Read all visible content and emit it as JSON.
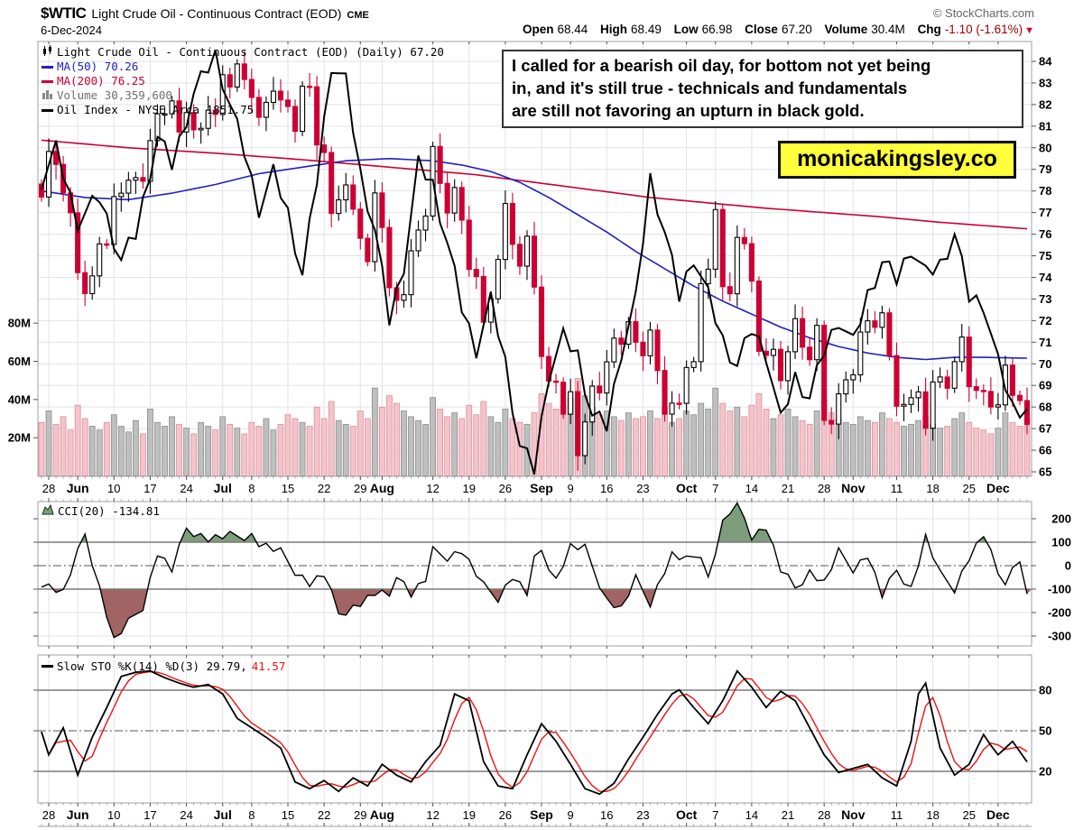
{
  "header": {
    "symbol": "$WTIC",
    "title": "Light Crude Oil - Continuous Contract (EOD)",
    "exchange": "CME",
    "copyright": "© StockCharts.com",
    "date": "6-Dec-2024",
    "quote": {
      "open_label": "Open",
      "open": "68.44",
      "high_label": "High",
      "high": "68.49",
      "low_label": "Low",
      "low": "66.98",
      "close_label": "Close",
      "close": "67.20",
      "volume_label": "Volume",
      "volume": "30.4M",
      "chg_label": "Chg",
      "chg": "-1.10 (-1.61%)",
      "chg_triangle": "▼"
    }
  },
  "legend": {
    "price_row": "Light Crude Oil - Continuous Contract (EOD) (Daily) 67.20",
    "ma50": "MA(50) 70.26",
    "ma200": "MA(200) 76.25",
    "volume": "Volume 30,359,600",
    "oil_index": "Oil Index - NYSE Arca 1851.75"
  },
  "cci_legend": "CCI(20) -134.81",
  "sto_legend_black": "Slow STO %K(14) %D(3) 29.79,",
  "sto_legend_red": "41.57",
  "annotation": {
    "lines": {
      "0": "I called for a bearish oil day, for bottom not yet being",
      "1": "in, and it's still true - technicals and fundamentals",
      "2": "are still not favoring an upturn in black gold."
    }
  },
  "branding": {
    "text": "monicakingsley.co",
    "bg": "#ffff3c"
  },
  "colors": {
    "candle_red": "#cc0033",
    "candle_black": "#000000",
    "vol_down_fill": "#f3c4cc",
    "vol_down_stroke": "#dd8f9b",
    "vol_up_fill": "#bfbfbf",
    "vol_up_stroke": "#8c8c8c",
    "ma50_blue": "#2020c0",
    "ma200_red": "#cc0033",
    "oil_index_black": "#000000",
    "cci_green": "#7d9d7c",
    "cci_maroon": "#a06464",
    "grid": "#e3e3e3",
    "border": "#a0a0a0",
    "refline": "#7a7a7a",
    "sto_k": "#000000",
    "sto_d": "#ee1111",
    "chg_maroon": "#990000",
    "brand_yellow": "#ffff3c"
  },
  "chart_data": {
    "type": "candlestick",
    "title": "Light Crude Oil - Continuous Contract (EOD) (Daily)",
    "price_axis": {
      "min": 65,
      "max": 84,
      "step": 1,
      "side": "right"
    },
    "volume_axis_ticks": [
      [
        20,
        "20M"
      ],
      [
        40,
        "40M"
      ],
      [
        60,
        "60M"
      ],
      [
        80,
        "80M"
      ]
    ],
    "date_ticks": [
      [
        1,
        "28"
      ],
      [
        5,
        "Jun"
      ],
      [
        10,
        "10"
      ],
      [
        15,
        "17"
      ],
      [
        20,
        "24"
      ],
      [
        25,
        "Jul"
      ],
      [
        29,
        "8"
      ],
      [
        34,
        "15"
      ],
      [
        39,
        "22"
      ],
      [
        44,
        "29"
      ],
      [
        47,
        "Aug"
      ],
      [
        54,
        "12"
      ],
      [
        59,
        "19"
      ],
      [
        64,
        "26"
      ],
      [
        69,
        "Sep"
      ],
      [
        73,
        "9"
      ],
      [
        78,
        "16"
      ],
      [
        83,
        "23"
      ],
      [
        89,
        "Oct"
      ],
      [
        93,
        "7"
      ],
      [
        98,
        "14"
      ],
      [
        103,
        "21"
      ],
      [
        108,
        "28"
      ],
      [
        112,
        "Nov"
      ],
      [
        118,
        "11"
      ],
      [
        123,
        "18"
      ],
      [
        128,
        "25"
      ],
      [
        132,
        "Dec"
      ]
    ],
    "closes": [
      77.72,
      79.83,
      79.23,
      77.91,
      76.99,
      74.22,
      73.25,
      74.07,
      75.55,
      75.53,
      77.74,
      77.9,
      78.5,
      78.62,
      78.45,
      80.33,
      81.57,
      81.57,
      82.17,
      80.73,
      81.63,
      80.83,
      80.9,
      81.74,
      81.54,
      83.38,
      82.81,
      83.88,
      83.16,
      82.33,
      81.41,
      82.1,
      82.62,
      82.21,
      81.91,
      80.76,
      82.85,
      82.82,
      80.13,
      79.78,
      76.96,
      77.59,
      78.28,
      77.16,
      75.81,
      74.73,
      77.91,
      76.31,
      73.52,
      72.94,
      73.2,
      75.23,
      76.19,
      76.84,
      80.06,
      78.35,
      76.98,
      78.16,
      76.65,
      74.37,
      74.04,
      71.93,
      73.01,
      74.83,
      77.42,
      75.53,
      74.52,
      75.91,
      73.55,
      70.34,
      69.2,
      69.15,
      67.67,
      68.71,
      65.75,
      67.31,
      68.97,
      68.65,
      70.09,
      71.19,
      70.91,
      71.95,
      71.0,
      70.37,
      71.56,
      69.69,
      67.67,
      68.18,
      68.17,
      69.83,
      70.1,
      73.71,
      74.38,
      77.14,
      73.57,
      73.24,
      75.85,
      75.56,
      73.83,
      70.58,
      70.39,
      70.67,
      69.22,
      70.56,
      72.09,
      70.77,
      70.19,
      71.78,
      67.38,
      67.21,
      68.61,
      69.26,
      69.49,
      71.47,
      71.99,
      71.69,
      72.36,
      70.38,
      68.04,
      68.12,
      68.43,
      68.7,
      67.02,
      69.16,
      69.39,
      68.87,
      70.1,
      71.24,
      68.94,
      68.77,
      68.72,
      68.0,
      68.1,
      69.94,
      68.54,
      68.3,
      67.2
    ],
    "volume_m": [
      28,
      34,
      27,
      31,
      24,
      37,
      30,
      26,
      24,
      28,
      32,
      26,
      23,
      29,
      22,
      35,
      28,
      26,
      31,
      27,
      25,
      22,
      28,
      26,
      24,
      31,
      27,
      25,
      22,
      28,
      26,
      30,
      24,
      27,
      32,
      30,
      28,
      26,
      36,
      30,
      39,
      29,
      27,
      26,
      34,
      30,
      46,
      36,
      42,
      38,
      34,
      31,
      29,
      27,
      41,
      35,
      31,
      33,
      30,
      37,
      32,
      39,
      31,
      28,
      35,
      30,
      28,
      27,
      33,
      43,
      38,
      35,
      37,
      41,
      51,
      42,
      36,
      32,
      34,
      31,
      29,
      33,
      30,
      31,
      34,
      30,
      36,
      28,
      30,
      34,
      32,
      38,
      35,
      46,
      38,
      34,
      36,
      31,
      37,
      43,
      35,
      30,
      32,
      35,
      31,
      29,
      27,
      34,
      40,
      33,
      30,
      28,
      27,
      31,
      29,
      28,
      33,
      30,
      28,
      26,
      27,
      29,
      31,
      27,
      25,
      26,
      30,
      33,
      28,
      25,
      24,
      22,
      25,
      33,
      28,
      26,
      30
    ],
    "ma50_anchors": [
      [
        0,
        78.0
      ],
      [
        6,
        77.7
      ],
      [
        12,
        77.6
      ],
      [
        18,
        77.9
      ],
      [
        24,
        78.3
      ],
      [
        30,
        78.8
      ],
      [
        36,
        79.1
      ],
      [
        42,
        79.4
      ],
      [
        48,
        79.5
      ],
      [
        54,
        79.4
      ],
      [
        58,
        79.2
      ],
      [
        62,
        78.9
      ],
      [
        66,
        78.4
      ],
      [
        70,
        77.7
      ],
      [
        74,
        76.9
      ],
      [
        78,
        76.1
      ],
      [
        82,
        75.2
      ],
      [
        86,
        74.4
      ],
      [
        90,
        73.6
      ],
      [
        94,
        72.9
      ],
      [
        98,
        72.3
      ],
      [
        102,
        71.7
      ],
      [
        106,
        71.2
      ],
      [
        110,
        70.8
      ],
      [
        114,
        70.5
      ],
      [
        118,
        70.3
      ],
      [
        122,
        70.2
      ],
      [
        126,
        70.3
      ],
      [
        130,
        70.3
      ],
      [
        136,
        70.26
      ]
    ],
    "ma200_anchors": [
      [
        0,
        80.35
      ],
      [
        12,
        80.0
      ],
      [
        24,
        79.75
      ],
      [
        36,
        79.45
      ],
      [
        48,
        79.1
      ],
      [
        60,
        78.75
      ],
      [
        68,
        78.4
      ],
      [
        76,
        78.05
      ],
      [
        84,
        77.7
      ],
      [
        92,
        77.45
      ],
      [
        100,
        77.2
      ],
      [
        108,
        77.0
      ],
      [
        116,
        76.8
      ],
      [
        124,
        76.55
      ],
      [
        130,
        76.4
      ],
      [
        136,
        76.25
      ]
    ],
    "oil_index_anchors": [
      [
        0,
        78.5
      ],
      [
        2,
        79.9
      ],
      [
        5,
        76.6
      ],
      [
        8,
        77.7
      ],
      [
        11,
        74.8
      ],
      [
        13,
        76.0
      ],
      [
        16,
        80.5
      ],
      [
        18,
        79.2
      ],
      [
        21,
        82.5
      ],
      [
        24,
        84.3
      ],
      [
        26,
        82.0
      ],
      [
        28,
        79.8
      ],
      [
        30,
        77.2
      ],
      [
        32,
        78.8
      ],
      [
        34,
        77.0
      ],
      [
        36,
        74.1
      ],
      [
        38,
        78.5
      ],
      [
        40,
        83.9
      ],
      [
        42,
        83.0
      ],
      [
        44,
        78.8
      ],
      [
        46,
        76.2
      ],
      [
        48,
        72.0
      ],
      [
        50,
        74.6
      ],
      [
        52,
        79.2
      ],
      [
        54,
        78.3
      ],
      [
        56,
        75.6
      ],
      [
        58,
        72.6
      ],
      [
        60,
        70.7
      ],
      [
        62,
        72.9
      ],
      [
        64,
        70.1
      ],
      [
        66,
        66.2
      ],
      [
        68,
        65.1
      ],
      [
        70,
        69.6
      ],
      [
        72,
        71.2
      ],
      [
        74,
        70.4
      ],
      [
        76,
        67.6
      ],
      [
        78,
        67.1
      ],
      [
        80,
        70.6
      ],
      [
        82,
        72.9
      ],
      [
        84,
        78.6
      ],
      [
        86,
        76.1
      ],
      [
        88,
        73.1
      ],
      [
        90,
        75.0
      ],
      [
        92,
        73.1
      ],
      [
        94,
        71.1
      ],
      [
        96,
        69.9
      ],
      [
        98,
        71.6
      ],
      [
        100,
        70.5
      ],
      [
        102,
        67.3
      ],
      [
        104,
        69.4
      ],
      [
        106,
        68.4
      ],
      [
        108,
        70.6
      ],
      [
        110,
        72.1
      ],
      [
        112,
        70.9
      ],
      [
        114,
        73.2
      ],
      [
        116,
        74.7
      ],
      [
        118,
        73.9
      ],
      [
        120,
        75.4
      ],
      [
        122,
        74.1
      ],
      [
        124,
        74.6
      ],
      [
        126,
        76.0
      ],
      [
        128,
        73.1
      ],
      [
        130,
        72.8
      ],
      [
        132,
        70.0
      ],
      [
        134,
        68.0
      ],
      [
        136,
        67.9
      ]
    ],
    "cci": {
      "ticks": [
        200,
        100,
        0,
        -100,
        -200,
        -300
      ],
      "overbought": 100,
      "oversold": -100,
      "last": -134.81,
      "anchors": [
        [
          0,
          -70
        ],
        [
          3,
          -115
        ],
        [
          6,
          135
        ],
        [
          10,
          -320
        ],
        [
          14,
          -170
        ],
        [
          16,
          55
        ],
        [
          18,
          -20
        ],
        [
          20,
          160
        ],
        [
          23,
          115
        ],
        [
          26,
          125
        ],
        [
          29,
          130
        ],
        [
          30,
          95
        ],
        [
          33,
          55
        ],
        [
          35,
          -20
        ],
        [
          37,
          -75
        ],
        [
          39,
          -40
        ],
        [
          41,
          -205
        ],
        [
          44,
          -160
        ],
        [
          46,
          -120
        ],
        [
          48,
          -130
        ],
        [
          49,
          -30
        ],
        [
          51,
          -120
        ],
        [
          53,
          -60
        ],
        [
          54,
          60
        ],
        [
          56,
          40
        ],
        [
          58,
          65
        ],
        [
          61,
          -90
        ],
        [
          63,
          -135
        ],
        [
          65,
          -45
        ],
        [
          67,
          -120
        ],
        [
          68,
          20
        ],
        [
          69,
          65
        ],
        [
          71,
          -60
        ],
        [
          73,
          80
        ],
        [
          75,
          70
        ],
        [
          78,
          -145
        ],
        [
          80,
          -185
        ],
        [
          82,
          -60
        ],
        [
          84,
          -155
        ],
        [
          86,
          -20
        ],
        [
          87,
          45
        ],
        [
          89,
          20
        ],
        [
          91,
          55
        ],
        [
          92,
          -55
        ],
        [
          94,
          180
        ],
        [
          96,
          275
        ],
        [
          98,
          130
        ],
        [
          100,
          165
        ],
        [
          102,
          -20
        ],
        [
          104,
          -95
        ],
        [
          106,
          -25
        ],
        [
          108,
          -75
        ],
        [
          110,
          55
        ],
        [
          112,
          -10
        ],
        [
          114,
          45
        ],
        [
          116,
          -130
        ],
        [
          118,
          -20
        ],
        [
          120,
          -95
        ],
        [
          122,
          120
        ],
        [
          124,
          -40
        ],
        [
          126,
          -95
        ],
        [
          128,
          35
        ],
        [
          130,
          130
        ],
        [
          132,
          -35
        ],
        [
          133,
          -60
        ],
        [
          135,
          30
        ],
        [
          136,
          -134.81
        ]
      ]
    },
    "sto": {
      "ticks": [
        80,
        50,
        20
      ],
      "overbought": 80,
      "oversold": 20,
      "k_last": 29.79,
      "d_last": 41.57,
      "k_anchors": [
        [
          0,
          52
        ],
        [
          1,
          35
        ],
        [
          3,
          55
        ],
        [
          5,
          20
        ],
        [
          7,
          48
        ],
        [
          9,
          70
        ],
        [
          11,
          93
        ],
        [
          13,
          96
        ],
        [
          15,
          97
        ],
        [
          17,
          92
        ],
        [
          19,
          88
        ],
        [
          21,
          85
        ],
        [
          23,
          87
        ],
        [
          25,
          80
        ],
        [
          27,
          62
        ],
        [
          29,
          55
        ],
        [
          31,
          48
        ],
        [
          33,
          40
        ],
        [
          35,
          15
        ],
        [
          37,
          10
        ],
        [
          39,
          16
        ],
        [
          41,
          8
        ],
        [
          43,
          18
        ],
        [
          45,
          12
        ],
        [
          47,
          28
        ],
        [
          49,
          20
        ],
        [
          51,
          15
        ],
        [
          53,
          30
        ],
        [
          55,
          42
        ],
        [
          57,
          80
        ],
        [
          59,
          75
        ],
        [
          61,
          30
        ],
        [
          63,
          12
        ],
        [
          65,
          10
        ],
        [
          67,
          35
        ],
        [
          69,
          58
        ],
        [
          71,
          45
        ],
        [
          73,
          28
        ],
        [
          75,
          10
        ],
        [
          77,
          6
        ],
        [
          79,
          14
        ],
        [
          81,
          32
        ],
        [
          83,
          48
        ],
        [
          85,
          65
        ],
        [
          87,
          80
        ],
        [
          88,
          83
        ],
        [
          90,
          70
        ],
        [
          92,
          58
        ],
        [
          94,
          75
        ],
        [
          96,
          97
        ],
        [
          98,
          85
        ],
        [
          100,
          70
        ],
        [
          102,
          82
        ],
        [
          104,
          75
        ],
        [
          106,
          55
        ],
        [
          108,
          35
        ],
        [
          110,
          22
        ],
        [
          112,
          25
        ],
        [
          114,
          28
        ],
        [
          116,
          18
        ],
        [
          118,
          12
        ],
        [
          120,
          45
        ],
        [
          121,
          80
        ],
        [
          122,
          88
        ],
        [
          124,
          40
        ],
        [
          126,
          20
        ],
        [
          128,
          28
        ],
        [
          130,
          50
        ],
        [
          131,
          42
        ],
        [
          132,
          35
        ],
        [
          134,
          45
        ],
        [
          136,
          29.79
        ]
      ]
    }
  }
}
